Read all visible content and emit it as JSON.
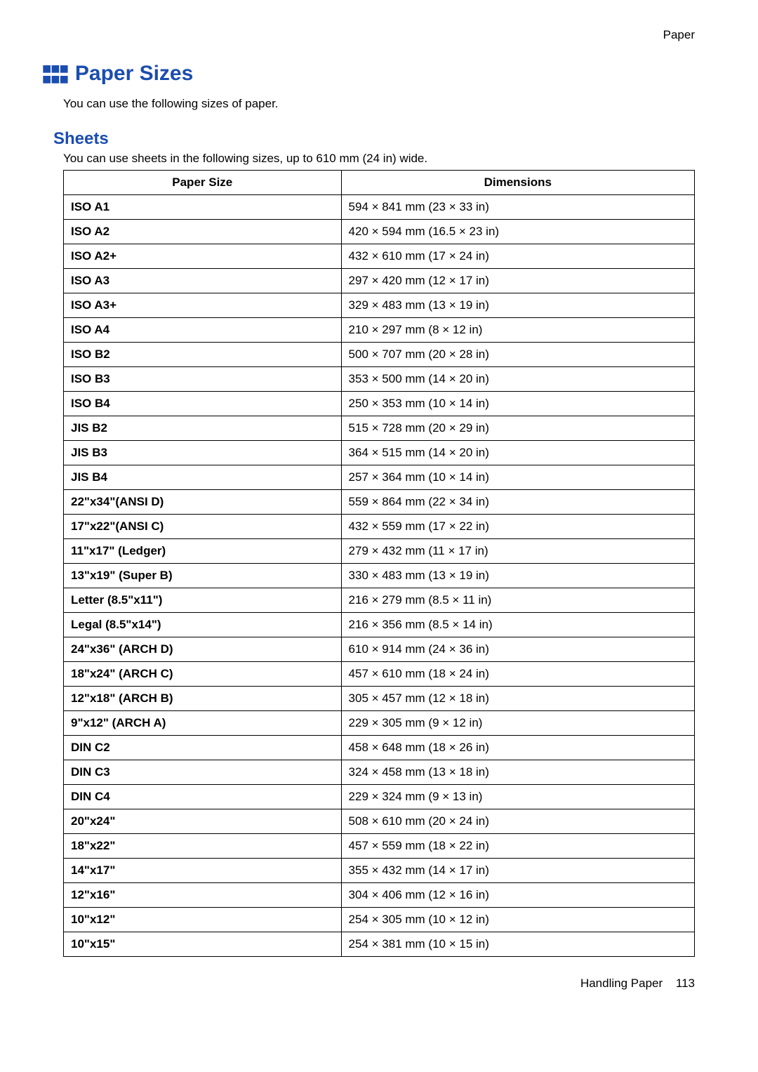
{
  "header": {
    "section_label": "Paper"
  },
  "title": "Paper Sizes",
  "intro_text": "You can use the following sizes of paper.",
  "sheets": {
    "heading": "Sheets",
    "intro_text": "You can use sheets in the following sizes, up to 610 mm (24 in) wide.",
    "columns": [
      "Paper Size",
      "Dimensions"
    ],
    "rows": [
      [
        "ISO A1",
        "594 × 841 mm (23 × 33 in)"
      ],
      [
        "ISO A2",
        "420 × 594 mm (16.5 × 23 in)"
      ],
      [
        "ISO A2+",
        "432 × 610 mm (17 × 24 in)"
      ],
      [
        "ISO A3",
        "297 × 420 mm (12 × 17 in)"
      ],
      [
        "ISO A3+",
        "329 × 483 mm (13 × 19 in)"
      ],
      [
        "ISO A4",
        "210 × 297 mm (8 × 12 in)"
      ],
      [
        "ISO B2",
        "500 × 707 mm (20 × 28 in)"
      ],
      [
        "ISO B3",
        "353 × 500 mm (14 × 20 in)"
      ],
      [
        "ISO B4",
        "250 × 353 mm (10 × 14 in)"
      ],
      [
        "JIS B2",
        "515 × 728 mm (20 × 29 in)"
      ],
      [
        "JIS B3",
        "364 × 515 mm (14 × 20 in)"
      ],
      [
        "JIS B4",
        "257 × 364 mm (10 × 14 in)"
      ],
      [
        "22\"x34\"(ANSI D)",
        "559 × 864 mm (22 × 34 in)"
      ],
      [
        "17\"x22\"(ANSI C)",
        "432 × 559 mm (17 × 22 in)"
      ],
      [
        "11\"x17\" (Ledger)",
        "279 × 432 mm (11 × 17 in)"
      ],
      [
        "13\"x19\" (Super B)",
        "330 × 483 mm (13 × 19 in)"
      ],
      [
        "Letter (8.5\"x11\")",
        "216 × 279 mm (8.5 × 11 in)"
      ],
      [
        "Legal (8.5\"x14\")",
        "216 × 356 mm (8.5 × 14 in)"
      ],
      [
        "24\"x36\" (ARCH D)",
        "610 × 914 mm (24 × 36 in)"
      ],
      [
        "18\"x24\" (ARCH C)",
        "457 × 610 mm (18 × 24 in)"
      ],
      [
        "12\"x18\" (ARCH B)",
        "305 × 457 mm (12 × 18 in)"
      ],
      [
        "9\"x12\" (ARCH A)",
        "229 × 305 mm (9 × 12 in)"
      ],
      [
        "DIN C2",
        "458 × 648 mm (18 × 26 in)"
      ],
      [
        "DIN C3",
        "324 × 458 mm (13 × 18 in)"
      ],
      [
        "DIN C4",
        "229 × 324 mm (9 × 13 in)"
      ],
      [
        "20\"x24\"",
        "508 × 610 mm (20 × 24 in)"
      ],
      [
        "18\"x22\"",
        "457 × 559 mm (18 × 22 in)"
      ],
      [
        "14\"x17\"",
        "355 × 432 mm (14 × 17 in)"
      ],
      [
        "12\"x16\"",
        "304 × 406 mm (12 × 16 in)"
      ],
      [
        "10\"x12\"",
        "254 × 305 mm (10 × 12 in)"
      ],
      [
        "10\"x15\"",
        "254 × 381 mm (10 × 15 in)"
      ]
    ]
  },
  "footer": {
    "label": "Handling Paper",
    "page_number": "113"
  },
  "colors": {
    "accent": "#1b4db0",
    "text": "#000000",
    "border": "#000000",
    "background": "#ffffff"
  },
  "typography": {
    "title_fontsize": 28,
    "subheading_fontsize": 22,
    "body_fontsize": 16
  }
}
